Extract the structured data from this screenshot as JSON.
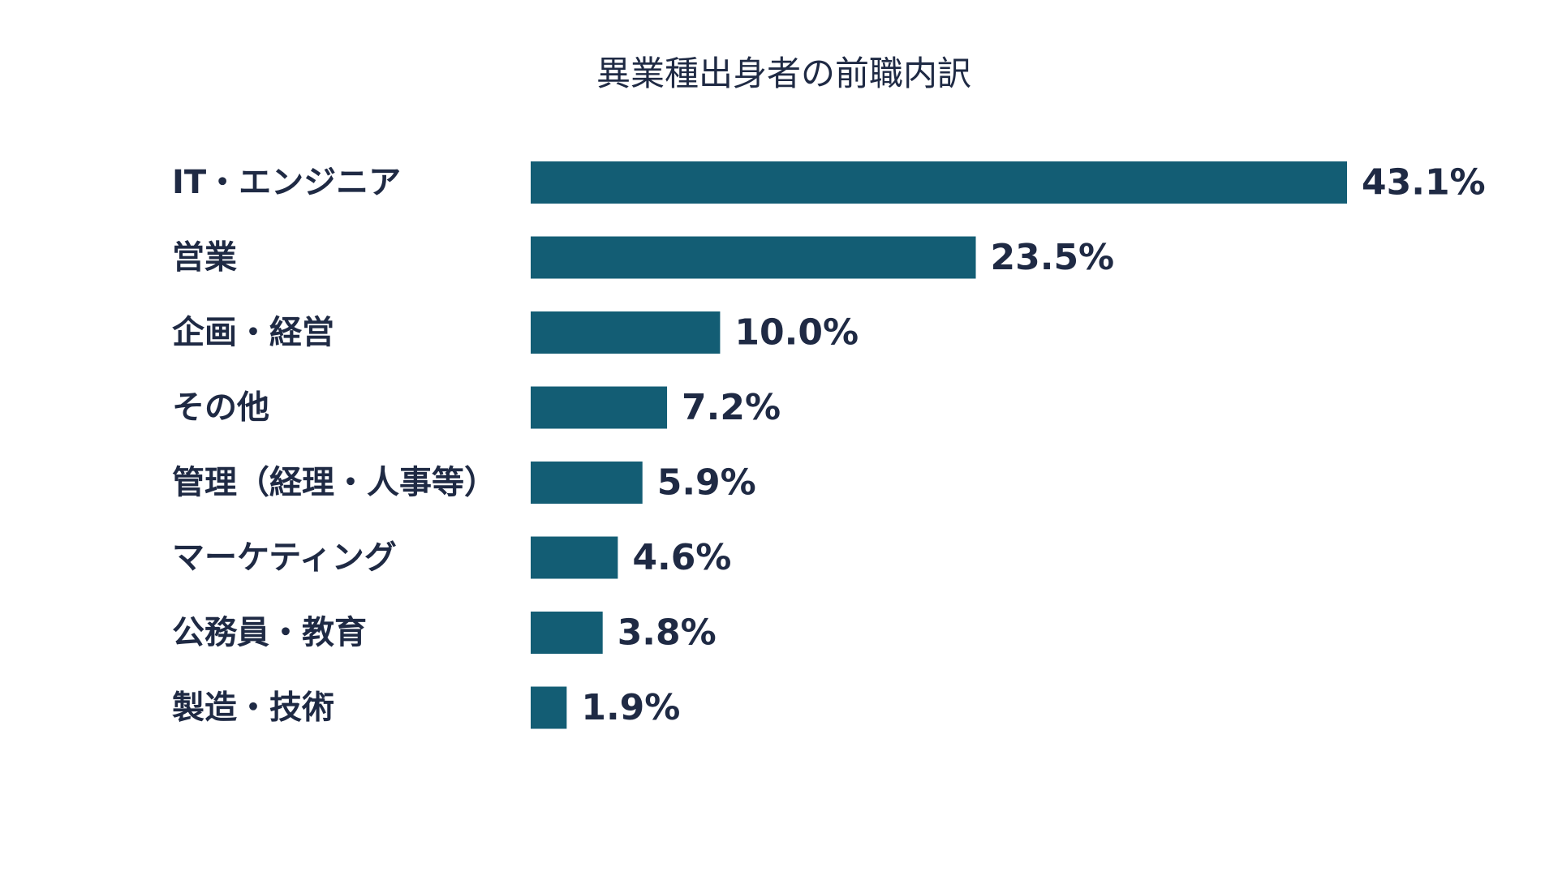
{
  "chart_data": {
    "type": "bar",
    "orientation": "horizontal",
    "title": "異業種出身者の前職内訳",
    "xlabel": "",
    "ylabel": "",
    "categories": [
      "IT・エンジニア",
      "営業",
      "企画・経営",
      "その他",
      "管理（経理・人事等）",
      "マーケティング",
      "公務員・教育",
      "製造・技術"
    ],
    "values": [
      43.1,
      23.5,
      10.0,
      7.2,
      5.9,
      4.6,
      3.8,
      1.9
    ],
    "value_labels": [
      "43.1%",
      "23.5%",
      "10.0%",
      "7.2%",
      "5.9%",
      "4.6%",
      "3.8%",
      "1.9%"
    ],
    "unit": "%",
    "xlim": [
      0,
      43.1
    ],
    "grid": false,
    "legend": "none",
    "bar_color": "#135d74",
    "text_color": "#1f2a44"
  }
}
